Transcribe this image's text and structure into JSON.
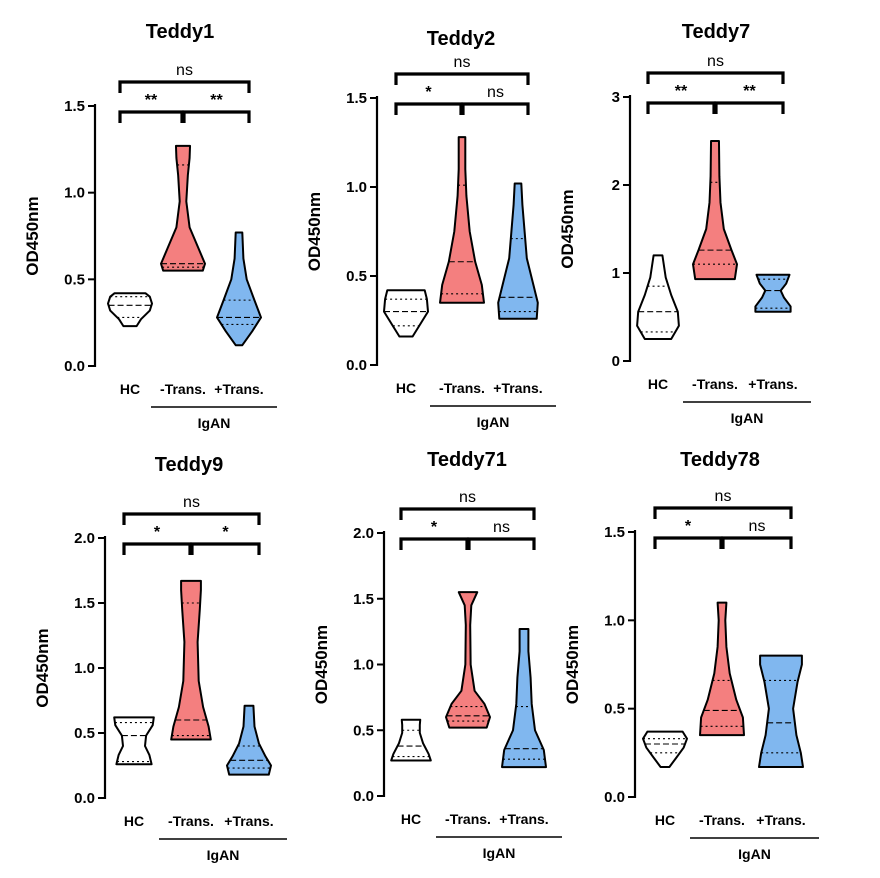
{
  "figure_type": "violin-panel-grid",
  "colors": {
    "HC": "#ffffff",
    "-Trans.": "#f47f7f",
    "+Trans.": "#80b7ef",
    "line": "#000000"
  },
  "chart_data": [
    {
      "type": "violin",
      "title": "Teddy1",
      "ylabel": "OD450nm",
      "ylim": [
        0,
        1.5
      ],
      "yticks": [
        "0.0",
        "0.5",
        "1.0",
        "1.5"
      ],
      "categories": [
        "HC",
        "-Trans.",
        "+Trans."
      ],
      "group_label": "IgAN",
      "groups": [
        {
          "name": "HC",
          "min": 0.23,
          "max": 0.42,
          "q1": 0.28,
          "median": 0.35,
          "q3": 0.4,
          "shape": [
            [
              0.23,
              0.3
            ],
            [
              0.27,
              0.5
            ],
            [
              0.32,
              0.9
            ],
            [
              0.36,
              1.0
            ],
            [
              0.4,
              0.9
            ],
            [
              0.42,
              0.7
            ]
          ]
        },
        {
          "name": "-Trans.",
          "min": 0.55,
          "max": 1.27,
          "q1": 0.57,
          "median": 0.59,
          "q3": 1.16,
          "shape": [
            [
              0.55,
              0.9
            ],
            [
              0.59,
              1.0
            ],
            [
              0.68,
              0.7
            ],
            [
              0.8,
              0.3
            ],
            [
              0.95,
              0.15
            ],
            [
              1.1,
              0.22
            ],
            [
              1.2,
              0.3
            ],
            [
              1.27,
              0.32
            ]
          ]
        },
        {
          "name": "+Trans.",
          "min": 0.12,
          "max": 0.77,
          "q1": 0.24,
          "median": 0.28,
          "q3": 0.38,
          "shape": [
            [
              0.12,
              0.15
            ],
            [
              0.2,
              0.6
            ],
            [
              0.28,
              1.0
            ],
            [
              0.38,
              0.7
            ],
            [
              0.5,
              0.35
            ],
            [
              0.62,
              0.2
            ],
            [
              0.77,
              0.15
            ]
          ]
        }
      ],
      "comparisons": [
        {
          "from": 0,
          "to": 2,
          "label": "ns",
          "level": 2
        },
        {
          "from": 0,
          "to": 1,
          "label": "**",
          "level": 1
        },
        {
          "from": 1,
          "to": 2,
          "label": "**",
          "level": 1
        }
      ]
    },
    {
      "type": "violin",
      "title": "Teddy2",
      "ylabel": "OD450nm",
      "ylim": [
        0,
        1.5
      ],
      "yticks": [
        "0.0",
        "0.5",
        "1.0",
        "1.5"
      ],
      "categories": [
        "HC",
        "-Trans.",
        "+Trans."
      ],
      "group_label": "IgAN",
      "groups": [
        {
          "name": "HC",
          "min": 0.16,
          "max": 0.42,
          "q1": 0.22,
          "median": 0.3,
          "q3": 0.37,
          "shape": [
            [
              0.16,
              0.3
            ],
            [
              0.22,
              0.6
            ],
            [
              0.3,
              1.0
            ],
            [
              0.37,
              0.95
            ],
            [
              0.42,
              0.85
            ]
          ]
        },
        {
          "name": "-Trans.",
          "min": 0.35,
          "max": 1.28,
          "q1": 0.4,
          "median": 0.58,
          "q3": 1.01,
          "shape": [
            [
              0.35,
              1.0
            ],
            [
              0.45,
              0.9
            ],
            [
              0.58,
              0.6
            ],
            [
              0.75,
              0.35
            ],
            [
              0.95,
              0.2
            ],
            [
              1.1,
              0.15
            ],
            [
              1.28,
              0.15
            ]
          ]
        },
        {
          "name": "+Trans.",
          "min": 0.26,
          "max": 1.02,
          "q1": 0.3,
          "median": 0.38,
          "q3": 0.71,
          "shape": [
            [
              0.26,
              0.85
            ],
            [
              0.35,
              0.9
            ],
            [
              0.45,
              0.7
            ],
            [
              0.6,
              0.4
            ],
            [
              0.75,
              0.3
            ],
            [
              0.9,
              0.2
            ],
            [
              1.02,
              0.15
            ]
          ]
        }
      ],
      "comparisons": [
        {
          "from": 0,
          "to": 2,
          "label": "ns",
          "level": 2
        },
        {
          "from": 0,
          "to": 1,
          "label": "*",
          "level": 1
        },
        {
          "from": 1,
          "to": 2,
          "label": "ns",
          "level": 1
        }
      ]
    },
    {
      "type": "violin",
      "title": "Teddy7",
      "ylabel": "OD450nm",
      "ylim": [
        0,
        3
      ],
      "yticks": [
        "0",
        "1",
        "2",
        "3"
      ],
      "categories": [
        "HC",
        "-Trans.",
        "+Trans."
      ],
      "group_label": "IgAN",
      "groups": [
        {
          "name": "HC",
          "min": 0.25,
          "max": 1.2,
          "q1": 0.33,
          "median": 0.56,
          "q3": 0.85,
          "shape": [
            [
              0.25,
              0.6
            ],
            [
              0.4,
              0.95
            ],
            [
              0.56,
              0.9
            ],
            [
              0.75,
              0.6
            ],
            [
              0.95,
              0.35
            ],
            [
              1.2,
              0.2
            ]
          ]
        },
        {
          "name": "-Trans.",
          "min": 0.93,
          "max": 2.5,
          "q1": 1.1,
          "median": 1.26,
          "q3": 2.03,
          "shape": [
            [
              0.93,
              0.9
            ],
            [
              1.1,
              1.0
            ],
            [
              1.26,
              0.75
            ],
            [
              1.5,
              0.4
            ],
            [
              1.8,
              0.25
            ],
            [
              2.1,
              0.2
            ],
            [
              2.5,
              0.18
            ]
          ]
        },
        {
          "name": "+Trans.",
          "min": 0.56,
          "max": 0.98,
          "q1": 0.6,
          "median": 0.8,
          "q3": 0.93,
          "shape": [
            [
              0.56,
              0.8
            ],
            [
              0.62,
              0.8
            ],
            [
              0.72,
              0.5
            ],
            [
              0.8,
              0.35
            ],
            [
              0.88,
              0.6
            ],
            [
              0.98,
              0.75
            ]
          ]
        }
      ],
      "comparisons": [
        {
          "from": 0,
          "to": 2,
          "label": "ns",
          "level": 2
        },
        {
          "from": 0,
          "to": 1,
          "label": "**",
          "level": 1
        },
        {
          "from": 1,
          "to": 2,
          "label": "**",
          "level": 1
        }
      ]
    },
    {
      "type": "violin",
      "title": "Teddy9",
      "ylabel": "OD450nm",
      "ylim": [
        0,
        2
      ],
      "yticks": [
        "0.0",
        "0.5",
        "1.0",
        "1.5",
        "2.0"
      ],
      "categories": [
        "HC",
        "-Trans.",
        "+Trans."
      ],
      "group_label": "IgAN",
      "groups": [
        {
          "name": "HC",
          "min": 0.26,
          "max": 0.62,
          "q1": 0.28,
          "median": 0.48,
          "q3": 0.58,
          "shape": [
            [
              0.26,
              0.8
            ],
            [
              0.33,
              0.7
            ],
            [
              0.4,
              0.5
            ],
            [
              0.48,
              0.55
            ],
            [
              0.56,
              0.85
            ],
            [
              0.62,
              0.9
            ]
          ]
        },
        {
          "name": "-Trans.",
          "min": 0.45,
          "max": 1.67,
          "q1": 0.48,
          "median": 0.6,
          "q3": 1.5,
          "shape": [
            [
              0.45,
              0.9
            ],
            [
              0.55,
              0.8
            ],
            [
              0.7,
              0.55
            ],
            [
              0.9,
              0.35
            ],
            [
              1.2,
              0.3
            ],
            [
              1.45,
              0.4
            ],
            [
              1.6,
              0.45
            ],
            [
              1.67,
              0.45
            ]
          ]
        },
        {
          "name": "+Trans.",
          "min": 0.18,
          "max": 0.71,
          "q1": 0.23,
          "median": 0.29,
          "q3": 0.4,
          "shape": [
            [
              0.18,
              0.9
            ],
            [
              0.25,
              1.0
            ],
            [
              0.32,
              0.75
            ],
            [
              0.42,
              0.45
            ],
            [
              0.55,
              0.25
            ],
            [
              0.71,
              0.2
            ]
          ]
        }
      ],
      "comparisons": [
        {
          "from": 0,
          "to": 2,
          "label": "ns",
          "level": 2
        },
        {
          "from": 0,
          "to": 1,
          "label": "*",
          "level": 1
        },
        {
          "from": 1,
          "to": 2,
          "label": "*",
          "level": 1
        }
      ]
    },
    {
      "type": "violin",
      "title": "Teddy71",
      "ylabel": "OD450nm",
      "ylim": [
        0,
        2
      ],
      "yticks": [
        "0.0",
        "0.5",
        "1.0",
        "1.5",
        "2.0"
      ],
      "categories": [
        "HC",
        "-Trans.",
        "+Trans."
      ],
      "group_label": "IgAN",
      "groups": [
        {
          "name": "HC",
          "min": 0.27,
          "max": 0.58,
          "q1": 0.3,
          "median": 0.38,
          "q3": 0.5,
          "shape": [
            [
              0.27,
              0.9
            ],
            [
              0.32,
              0.8
            ],
            [
              0.4,
              0.55
            ],
            [
              0.48,
              0.4
            ],
            [
              0.54,
              0.4
            ],
            [
              0.58,
              0.42
            ]
          ]
        },
        {
          "name": "-Trans.",
          "min": 0.52,
          "max": 1.55,
          "q1": 0.57,
          "median": 0.61,
          "q3": 0.68,
          "shape": [
            [
              0.52,
              0.85
            ],
            [
              0.6,
              1.0
            ],
            [
              0.7,
              0.75
            ],
            [
              0.8,
              0.3
            ],
            [
              1.0,
              0.12
            ],
            [
              1.3,
              0.1
            ],
            [
              1.45,
              0.15
            ],
            [
              1.55,
              0.42
            ]
          ]
        },
        {
          "name": "+Trans.",
          "min": 0.22,
          "max": 1.27,
          "q1": 0.28,
          "median": 0.36,
          "q3": 0.68,
          "shape": [
            [
              0.22,
              1.0
            ],
            [
              0.35,
              0.9
            ],
            [
              0.5,
              0.5
            ],
            [
              0.7,
              0.35
            ],
            [
              0.9,
              0.3
            ],
            [
              1.1,
              0.2
            ],
            [
              1.27,
              0.2
            ]
          ]
        }
      ],
      "comparisons": [
        {
          "from": 0,
          "to": 2,
          "label": "ns",
          "level": 2
        },
        {
          "from": 0,
          "to": 1,
          "label": "*",
          "level": 1
        },
        {
          "from": 1,
          "to": 2,
          "label": "ns",
          "level": 1
        }
      ]
    },
    {
      "type": "violin",
      "title": "Teddy78",
      "ylabel": "OD450nm",
      "ylim": [
        0,
        1.5
      ],
      "yticks": [
        "0.0",
        "0.5",
        "1.0",
        "1.5"
      ],
      "categories": [
        "HC",
        "-Trans.",
        "+Trans."
      ],
      "group_label": "IgAN",
      "groups": [
        {
          "name": "HC",
          "min": 0.17,
          "max": 0.37,
          "q1": 0.25,
          "median": 0.3,
          "q3": 0.33,
          "shape": [
            [
              0.17,
              0.2
            ],
            [
              0.22,
              0.5
            ],
            [
              0.28,
              0.85
            ],
            [
              0.33,
              1.0
            ],
            [
              0.37,
              0.8
            ]
          ]
        },
        {
          "name": "-Trans.",
          "min": 0.35,
          "max": 1.1,
          "q1": 0.4,
          "median": 0.49,
          "q3": 0.66,
          "shape": [
            [
              0.35,
              1.0
            ],
            [
              0.45,
              0.95
            ],
            [
              0.55,
              0.65
            ],
            [
              0.7,
              0.35
            ],
            [
              0.85,
              0.2
            ],
            [
              1.0,
              0.15
            ],
            [
              1.1,
              0.2
            ]
          ]
        },
        {
          "name": "+Trans.",
          "min": 0.17,
          "max": 0.8,
          "q1": 0.25,
          "median": 0.42,
          "q3": 0.66,
          "shape": [
            [
              0.17,
              1.0
            ],
            [
              0.25,
              0.9
            ],
            [
              0.35,
              0.7
            ],
            [
              0.5,
              0.55
            ],
            [
              0.65,
              0.75
            ],
            [
              0.75,
              0.95
            ],
            [
              0.8,
              0.95
            ]
          ]
        }
      ],
      "comparisons": [
        {
          "from": 0,
          "to": 2,
          "label": "ns",
          "level": 2
        },
        {
          "from": 0,
          "to": 1,
          "label": "*",
          "level": 1
        },
        {
          "from": 1,
          "to": 2,
          "label": "ns",
          "level": 1
        }
      ]
    }
  ]
}
